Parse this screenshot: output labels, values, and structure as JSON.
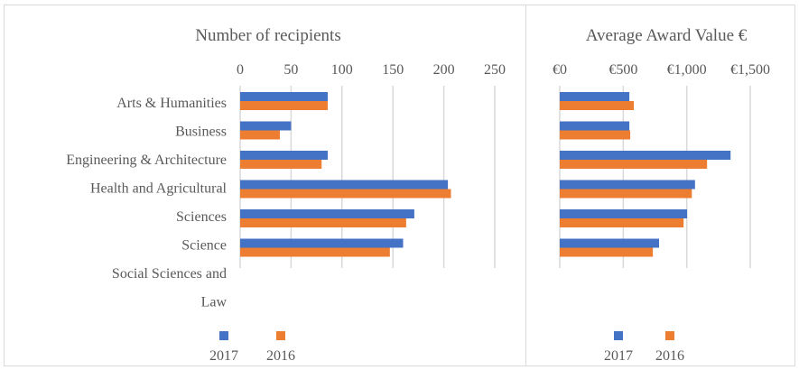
{
  "chart_data": [
    {
      "type": "bar",
      "orientation": "horizontal",
      "title": "Number of recipients",
      "xlabel": "",
      "ylabel": "",
      "xlim": [
        0,
        250
      ],
      "ticks": [
        0,
        50,
        100,
        150,
        200,
        250
      ],
      "tick_labels": [
        "0",
        "50",
        "100",
        "150",
        "200",
        "250"
      ],
      "grid": true,
      "categories": [
        "Arts & Humanities",
        "Business",
        "Engineering & Architecture",
        "Health and Agricultural Sciences",
        "Science",
        "Social Sciences and Law"
      ],
      "series": [
        {
          "name": "2017",
          "color": "#4472C4",
          "values": [
            86,
            50,
            86,
            204,
            171,
            160
          ]
        },
        {
          "name": "2016",
          "color": "#ED7D31",
          "values": [
            86,
            39,
            80,
            207,
            163,
            147
          ]
        }
      ],
      "legend": "bottom"
    },
    {
      "type": "bar",
      "orientation": "horizontal",
      "title": "Average Award Value €",
      "xlabel": "",
      "ylabel": "",
      "xlim": [
        0,
        1500
      ],
      "ticks": [
        0,
        500,
        1000,
        1500
      ],
      "tick_labels": [
        "€0",
        "€500",
        "€1,000",
        "€1,500"
      ],
      "grid": true,
      "categories": [
        "Arts & Humanities",
        "Business",
        "Engineering & Architecture",
        "Health and Agricultural Sciences",
        "Science",
        "Social Sciences and Law"
      ],
      "series": [
        {
          "name": "2017",
          "color": "#4472C4",
          "values": [
            548,
            548,
            1345,
            1065,
            1003,
            782
          ]
        },
        {
          "name": "2016",
          "color": "#ED7D31",
          "values": [
            583,
            555,
            1160,
            1040,
            975,
            733
          ]
        }
      ],
      "legend": "bottom"
    }
  ],
  "category_label_lines": [
    "Arts & Humanities",
    "Business",
    "Engineering & Architecture",
    "Health and Agricultural",
    "Sciences",
    "Science",
    "Social Sciences and",
    "Law"
  ]
}
